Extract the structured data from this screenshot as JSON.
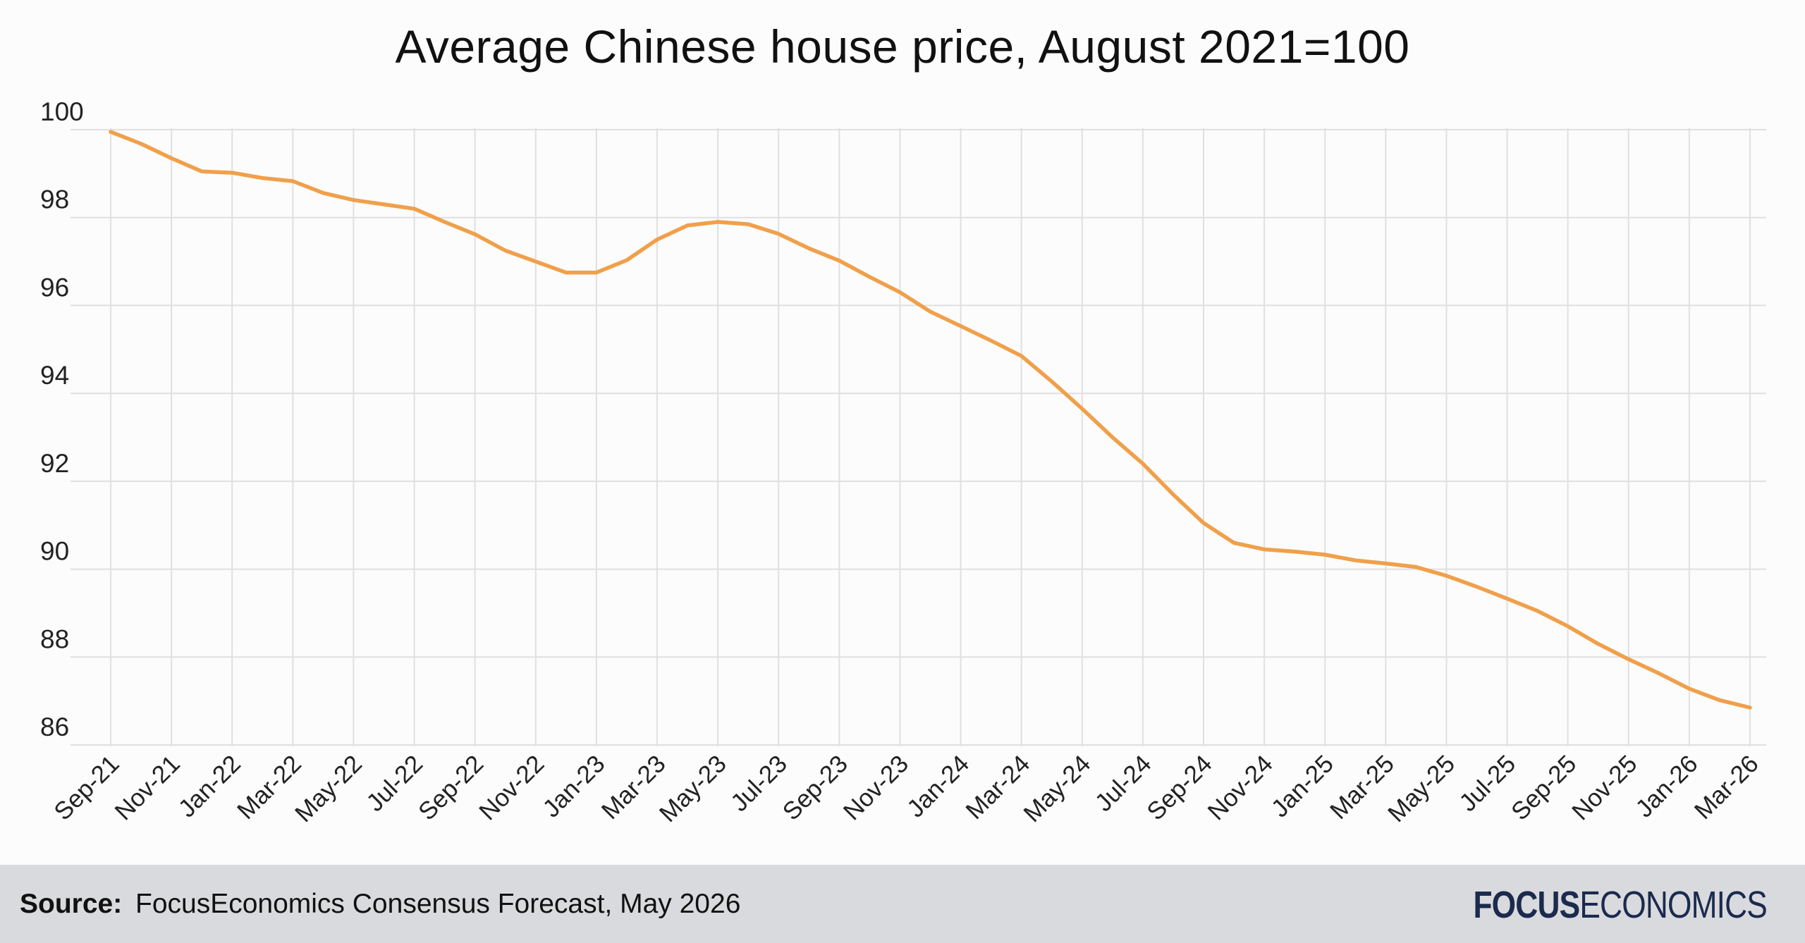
{
  "title": "Average Chinese house price, August 2021=100",
  "footer": {
    "source_label": "Source:",
    "source_text": "FocusEconomics Consensus Forecast, May 2026",
    "logo_focus": "FOCUS",
    "logo_economics": "ECONOMICS"
  },
  "colors": {
    "line": "#f0a04b",
    "grid": "#e0e0e0",
    "footer_bg": "#d9dadd",
    "logo": "#1b2a4e"
  },
  "chart_data": {
    "type": "line",
    "title": "Average Chinese house price, August 2021=100",
    "xlabel": "",
    "ylabel": "",
    "ylim": [
      86,
      100
    ],
    "yticks": [
      86,
      88,
      90,
      92,
      94,
      96,
      98,
      100
    ],
    "grid": true,
    "x_tick_labels": [
      "Sep-21",
      "Nov-21",
      "Jan-22",
      "Mar-22",
      "May-22",
      "Jul-22",
      "Sep-22",
      "Nov-22",
      "Jan-23",
      "Mar-23",
      "May-23",
      "Jul-23",
      "Sep-23",
      "Nov-23",
      "Jan-24",
      "Mar-24",
      "May-24",
      "Jul-24",
      "Sep-24",
      "Nov-24",
      "Jan-25",
      "Mar-25",
      "May-25",
      "Jul-25",
      "Sep-25",
      "Nov-25",
      "Jan-26",
      "Mar-26"
    ],
    "x": [
      "Sep-21",
      "Oct-21",
      "Nov-21",
      "Dec-21",
      "Jan-22",
      "Feb-22",
      "Mar-22",
      "Apr-22",
      "May-22",
      "Jun-22",
      "Jul-22",
      "Aug-22",
      "Sep-22",
      "Oct-22",
      "Nov-22",
      "Dec-22",
      "Jan-23",
      "Feb-23",
      "Mar-23",
      "Apr-23",
      "May-23",
      "Jun-23",
      "Jul-23",
      "Aug-23",
      "Sep-23",
      "Oct-23",
      "Nov-23",
      "Dec-23",
      "Jan-24",
      "Feb-24",
      "Mar-24",
      "Apr-24",
      "May-24",
      "Jun-24",
      "Jul-24",
      "Aug-24",
      "Sep-24",
      "Oct-24",
      "Nov-24",
      "Dec-24",
      "Jan-25",
      "Feb-25",
      "Mar-25",
      "Apr-25",
      "May-25",
      "Jun-25",
      "Jul-25",
      "Aug-25",
      "Sep-25",
      "Oct-25",
      "Nov-25",
      "Dec-25",
      "Jan-26",
      "Feb-26",
      "Mar-26"
    ],
    "series": [
      {
        "values": [
          99.95,
          99.68,
          99.35,
          99.05,
          99.02,
          98.9,
          98.83,
          98.56,
          98.4,
          98.3,
          98.2,
          97.9,
          97.62,
          97.25,
          97.0,
          96.75,
          96.75,
          97.03,
          97.5,
          97.82,
          97.9,
          97.85,
          97.63,
          97.3,
          97.02,
          96.65,
          96.3,
          95.86,
          95.53,
          95.2,
          94.85,
          94.27,
          93.65,
          93.0,
          92.4,
          91.7,
          91.05,
          90.6,
          90.45,
          90.4,
          90.33,
          90.2,
          90.13,
          90.05,
          89.85,
          89.6,
          89.33,
          89.05,
          88.7,
          88.3,
          87.95,
          87.63,
          87.28,
          87.02,
          86.85
        ]
      }
    ]
  }
}
